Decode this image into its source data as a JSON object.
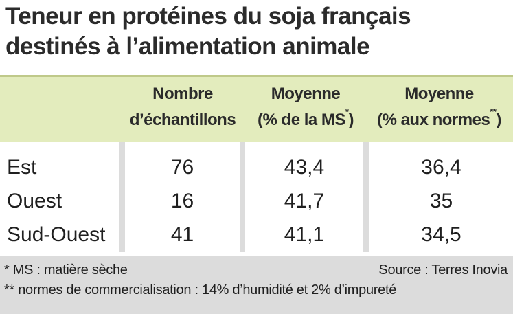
{
  "title": {
    "line1": "Teneur en protéines du soja français",
    "line2": "destinés à l’alimentation animale"
  },
  "table": {
    "headers": {
      "count": {
        "line1": "Nombre",
        "line2": "d’échantillons"
      },
      "ms": {
        "line1": "Moyenne",
        "line2": "(% de la MS",
        "mark": "*",
        "close": ")"
      },
      "norm": {
        "line1": "Moyenne",
        "line2": "(% aux normes",
        "mark": "**",
        "close": ")"
      }
    },
    "rows": [
      {
        "label": "Est",
        "count": "76",
        "ms": "43,4",
        "norm": "36,4"
      },
      {
        "label": "Ouest",
        "count": "16",
        "ms": "41,7",
        "norm": "35"
      },
      {
        "label": "Sud-Ouest",
        "count": "41",
        "ms": "41,1",
        "norm": "34,5"
      }
    ]
  },
  "footnotes": {
    "ms": "* MS : matière sèche",
    "source": "Source : Terres Inovia",
    "norms": "** normes de commercialisation : 14% d’humidité et 2% d’impureté"
  },
  "colors": {
    "header_band": "#e3ecbd",
    "gray_band": "#dcdcdc",
    "text": "#1f1f1f"
  }
}
